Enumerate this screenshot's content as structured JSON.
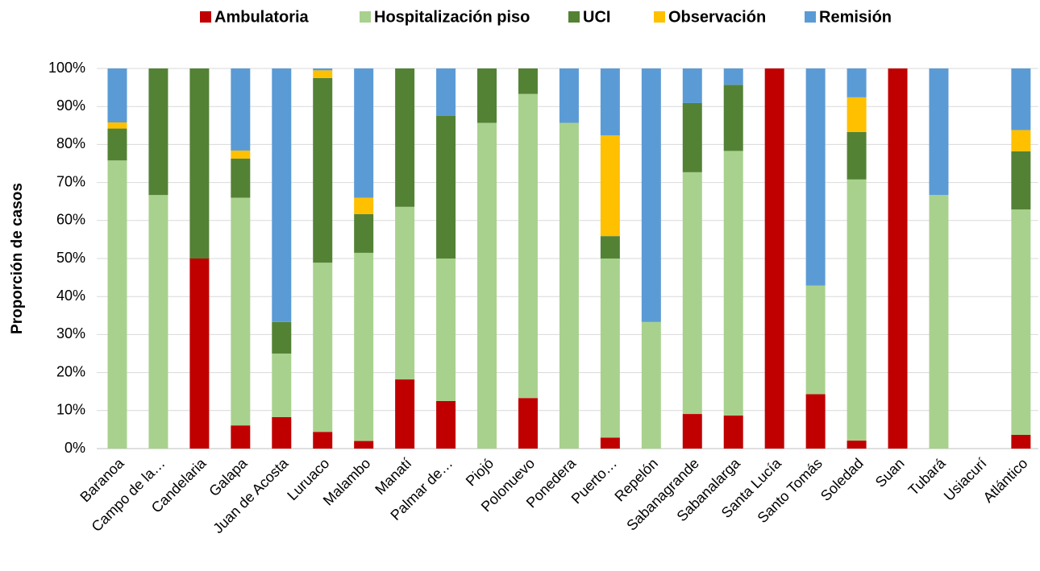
{
  "chart_data": {
    "type": "stacked_bar",
    "y_label": "Proporción de casos",
    "categories": [
      "Baranoa",
      "Campo de la…",
      "Candelaria",
      "Galapa",
      "Juan de Acosta",
      "Luruaco",
      "Malambo",
      "Manatí",
      "Palmar de…",
      "Piojó",
      "Polonuevo",
      "Ponedera",
      "Puerto…",
      "Repelón",
      "Sabanagrande",
      "Sabanalarga",
      "Santa Lucía",
      "Santo Tomás",
      "Soledad",
      "Suan",
      "Tubará",
      "Usiacurí",
      "Atlántico"
    ],
    "series": [
      {
        "name": "Ambulatoria",
        "color": "#c00000",
        "values": [
          0,
          0,
          50,
          6.1,
          8.3,
          4.4,
          2.0,
          18.2,
          12.5,
          0,
          13.3,
          0,
          2.9,
          0,
          9.1,
          8.7,
          100,
          14.3,
          2.1,
          100,
          0,
          0,
          3.6
        ]
      },
      {
        "name": "Hospitalización piso",
        "color": "#a9d18e",
        "values": [
          75.8,
          66.7,
          0,
          59.9,
          16.7,
          44.5,
          49.5,
          45.4,
          37.5,
          85.7,
          80.0,
          85.7,
          47.1,
          33.3,
          63.6,
          69.6,
          0,
          28.6,
          68.7,
          0,
          66.7,
          0,
          59.3
        ]
      },
      {
        "name": "UCI",
        "color": "#548235",
        "values": [
          8.4,
          33.3,
          50,
          10.3,
          8.3,
          48.6,
          10.2,
          36.4,
          37.5,
          14.3,
          6.7,
          0,
          5.9,
          0,
          18.2,
          17.4,
          0,
          0,
          12.5,
          0,
          0,
          0,
          15.3
        ]
      },
      {
        "name": "Observación",
        "color": "#ffc000",
        "values": [
          1.6,
          0,
          0,
          2.1,
          0,
          2.0,
          4.3,
          0,
          0,
          0,
          0,
          0,
          26.5,
          0,
          0,
          0,
          0,
          0,
          9.1,
          0,
          0,
          0,
          5.6
        ]
      },
      {
        "name": "Remisión",
        "color": "#5b9bd5",
        "values": [
          14.2,
          0,
          0,
          21.6,
          66.7,
          0.5,
          34.0,
          0,
          12.5,
          0,
          0,
          14.3,
          17.6,
          66.7,
          9.1,
          4.3,
          0,
          57.1,
          7.6,
          0,
          33.3,
          0,
          16.2
        ]
      }
    ],
    "ylim": [
      0,
      100
    ],
    "yticks": [
      {
        "value": 0,
        "label": "0%"
      },
      {
        "value": 10,
        "label": "10%"
      },
      {
        "value": 20,
        "label": "20%"
      },
      {
        "value": 30,
        "label": "30%"
      },
      {
        "value": 40,
        "label": "40%"
      },
      {
        "value": 50,
        "label": "50%"
      },
      {
        "value": 60,
        "label": "60%"
      },
      {
        "value": 70,
        "label": "70%"
      },
      {
        "value": 80,
        "label": "80%"
      },
      {
        "value": 90,
        "label": "90%"
      },
      {
        "value": 100,
        "label": "100%"
      }
    ],
    "grid": true,
    "legend": "top"
  }
}
